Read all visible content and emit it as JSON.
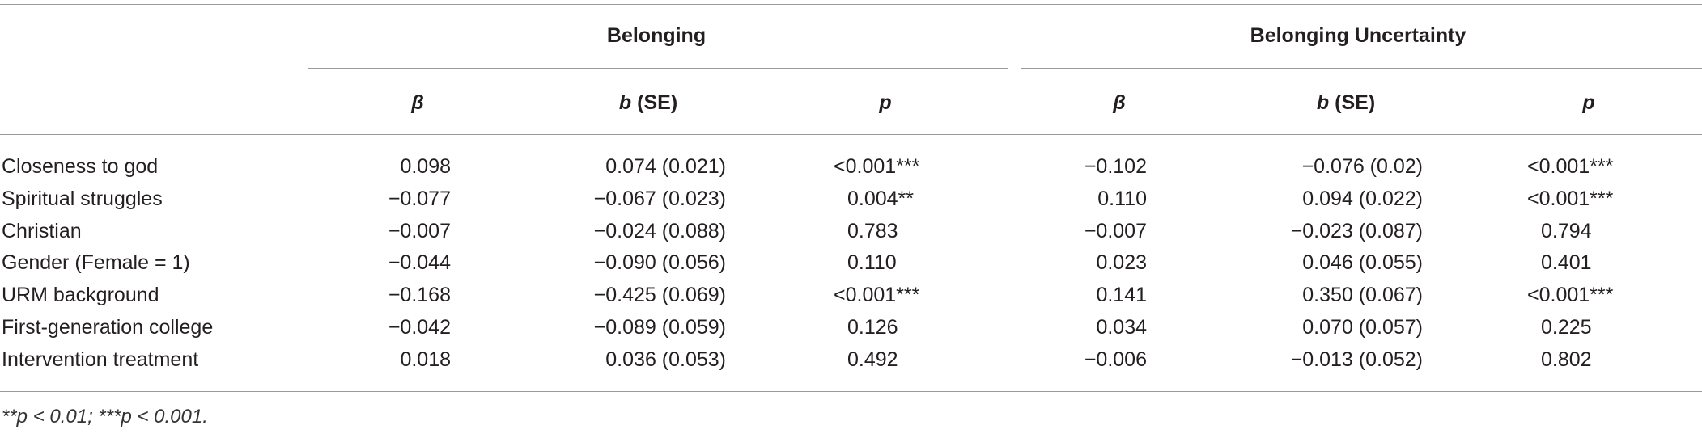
{
  "table": {
    "group_headers": [
      "Belonging",
      "Belonging Uncertainty"
    ],
    "column_headers": [
      {
        "symbol": "β"
      },
      {
        "symbol": "b",
        "suffix": "(SE)"
      },
      {
        "symbol": "p"
      },
      {
        "symbol": "β"
      },
      {
        "symbol": "b",
        "suffix": "(SE)"
      },
      {
        "symbol": "p"
      }
    ],
    "rows": [
      [
        "Closeness to god",
        "0.098",
        "0.074 (0.021)",
        "<0.001***",
        "−0.102",
        "−0.076 (0.02)",
        "<0.001***"
      ],
      [
        "Spiritual struggles",
        "−0.077",
        "−0.067 (0.023)",
        "0.004**",
        "0.110",
        "0.094 (0.022)",
        "<0.001***"
      ],
      [
        "Christian",
        "−0.007",
        "−0.024 (0.088)",
        "0.783",
        "−0.007",
        "−0.023 (0.087)",
        "0.794"
      ],
      [
        "Gender (Female = 1)",
        "−0.044",
        "−0.090 (0.056)",
        "0.110",
        "0.023",
        "0.046 (0.055)",
        "0.401"
      ],
      [
        "URM background",
        "−0.168",
        "−0.425 (0.069)",
        "<0.001***",
        "0.141",
        "0.350 (0.067)",
        "<0.001***"
      ],
      [
        "First-generation college",
        "−0.042",
        "−0.089 (0.059)",
        "0.126",
        "0.034",
        "0.070 (0.057)",
        "0.225"
      ],
      [
        "Intervention treatment",
        "0.018",
        "0.036 (0.053)",
        "0.492",
        "−0.006",
        "−0.013 (0.052)",
        "0.802"
      ]
    ],
    "footnote": "**p < 0.01; ***p < 0.001."
  }
}
